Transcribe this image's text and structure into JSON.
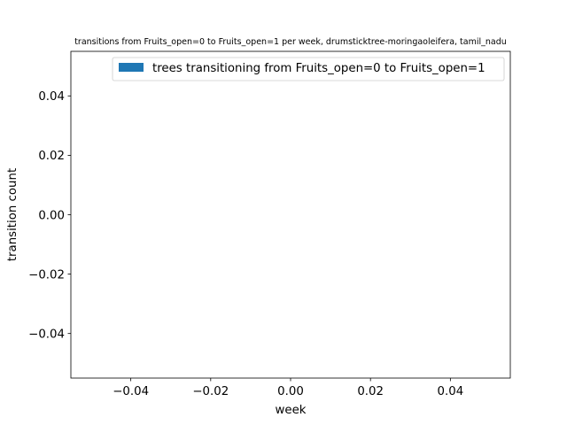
{
  "chart_data": {
    "type": "bar",
    "title": "transitions from Fruits_open=0 to Fruits_open=1 per week, drumsticktree-moringaoleifera, tamil_nadu",
    "xlabel": "week",
    "ylabel": "transition count",
    "xlim": [
      -0.055,
      0.055
    ],
    "ylim": [
      -0.055,
      0.055
    ],
    "xticks": [
      -0.04,
      -0.02,
      0.0,
      0.02,
      0.04
    ],
    "yticks": [
      -0.04,
      -0.02,
      0.0,
      0.02,
      0.04
    ],
    "xtick_labels": [
      "−0.04",
      "−0.02",
      "0.00",
      "0.02",
      "0.04"
    ],
    "ytick_labels": [
      "−0.04",
      "−0.02",
      "0.00",
      "0.02",
      "0.04"
    ],
    "series": [
      {
        "name": "trees transitioning from Fruits_open=0 to Fruits_open=1",
        "color": "#1f77b4",
        "x": [],
        "values": []
      }
    ],
    "legend": "top-right",
    "grid": false
  }
}
